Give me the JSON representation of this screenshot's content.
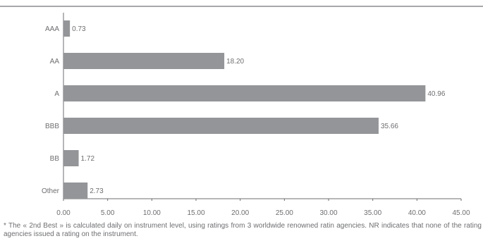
{
  "chart_data": {
    "type": "bar",
    "orientation": "horizontal",
    "categories": [
      "AAA",
      "AA",
      "A",
      "BBB",
      "BB",
      "Other"
    ],
    "values": [
      0.73,
      18.2,
      40.96,
      35.66,
      1.72,
      2.73
    ],
    "value_labels": [
      "0.73",
      "18.20",
      "40.96",
      "35.66",
      "1.72",
      "2.73"
    ],
    "xlim": [
      0,
      45
    ],
    "x_ticks": [
      "0.00",
      "5.00",
      "10.00",
      "15.00",
      "20.00",
      "25.00",
      "30.00",
      "35.00",
      "40.00",
      "45.00"
    ],
    "grid": false,
    "bar_color": "#939598"
  },
  "footnote": "* The « 2nd Best » is calculated daily on instrument level, using ratings from 3 worldwide renowned ratin agencies. NR indicates that none of the rating agencies issued a rating on the instrument."
}
